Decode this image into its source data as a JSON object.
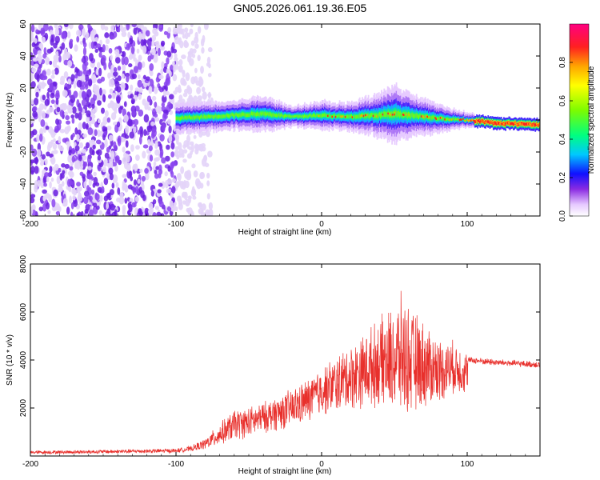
{
  "title": "GN05.2026.061.19.36.E05",
  "colors": {
    "snr_line": "#e8302c",
    "spectro_bg_light": "#e3d4f8",
    "spectro_dark": "#6a1fe0",
    "spectro_mid": "#8b45f0"
  },
  "chart_data": [
    {
      "type": "heatmap",
      "title": "GN05.2026.061.19.36.E05",
      "xlabel": "Height of straight line (km)",
      "ylabel": "Frequency (Hz)",
      "xlim": [
        -200,
        150
      ],
      "ylim": [
        -60,
        60
      ],
      "xticks": [
        -200,
        -100,
        0,
        100
      ],
      "xticklabels": [
        "-200",
        "-100",
        "0",
        "100"
      ],
      "yticks": [
        -60,
        -40,
        -20,
        0,
        20,
        40,
        60
      ],
      "yticklabels": [
        "-60",
        "-40",
        "-20",
        "0",
        "20",
        "40",
        "60"
      ],
      "colorbar": {
        "label": "Normalized spectral amplitude",
        "range": [
          0,
          1
        ],
        "ticks": [
          0,
          0.2,
          0.4,
          0.6,
          0.8
        ],
        "ticklabels": [
          "0.0",
          "0.2",
          "0.4",
          "0.6",
          "0.8"
        ]
      },
      "ridge": {
        "description_x": [
          -100,
          -80,
          -60,
          -40,
          -20,
          0,
          20,
          40,
          50,
          60,
          80,
          100,
          120,
          150
        ],
        "center_freq": [
          1,
          2,
          3,
          4,
          2,
          3,
          2,
          3,
          4,
          3,
          1,
          0,
          -2,
          -3
        ],
        "halfwidth": [
          4,
          4,
          4,
          5,
          3,
          4,
          4,
          6,
          8,
          6,
          4,
          2,
          2,
          2
        ]
      },
      "noise_region": [
        -200,
        -75
      ]
    },
    {
      "type": "line",
      "xlabel": "Height of straight line (km)",
      "ylabel": "SNR (10 * v/v)",
      "xlim": [
        -200,
        150
      ],
      "ylim": [
        0,
        8000
      ],
      "xticks": [
        -200,
        -100,
        0,
        100
      ],
      "xticklabels": [
        "-200",
        "-100",
        "0",
        "100"
      ],
      "yticks": [
        2000,
        4000,
        6000,
        8000
      ],
      "yticklabels": [
        "2000",
        "4000",
        "6000",
        "8000"
      ],
      "envelope": {
        "x": [
          -200,
          -150,
          -100,
          -90,
          -80,
          -70,
          -60,
          -50,
          -40,
          -30,
          -20,
          -10,
          0,
          10,
          20,
          30,
          40,
          50,
          55,
          60,
          70,
          80,
          90,
          100,
          101,
          120,
          150
        ],
        "mean": [
          150,
          180,
          220,
          300,
          500,
          900,
          1300,
          1400,
          1600,
          1800,
          2000,
          2300,
          2700,
          3000,
          3300,
          3600,
          3900,
          4000,
          4200,
          4000,
          3800,
          3600,
          3700,
          3500,
          4000,
          3900,
          3800
        ],
        "amp": [
          80,
          90,
          100,
          120,
          250,
          500,
          700,
          700,
          700,
          800,
          900,
          1000,
          1100,
          1300,
          1500,
          1700,
          2000,
          2500,
          2800,
          2500,
          2000,
          1500,
          1200,
          1000,
          150,
          150,
          150
        ]
      }
    }
  ]
}
